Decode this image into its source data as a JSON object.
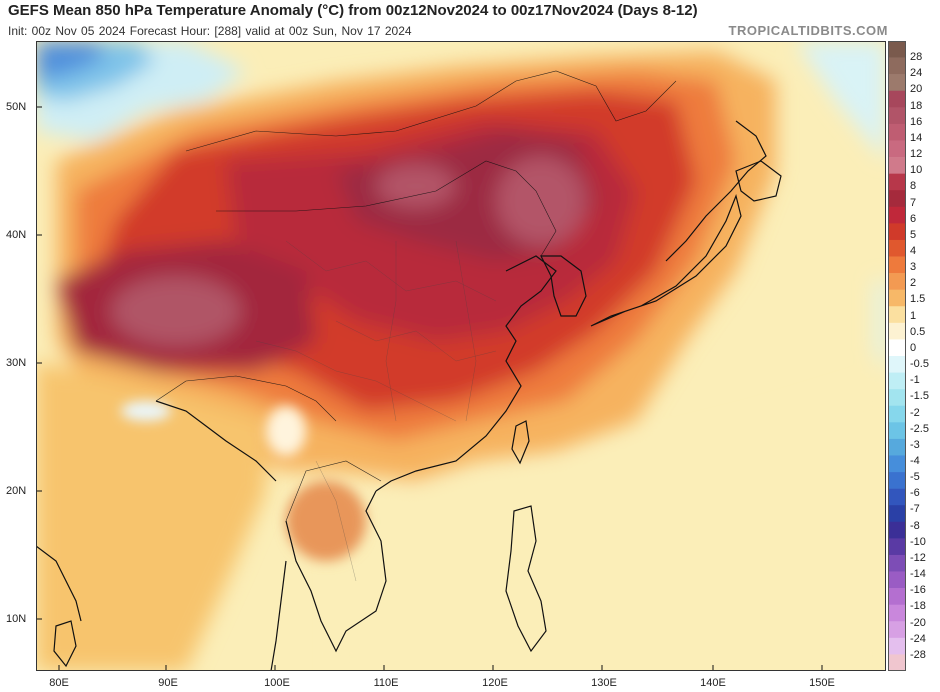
{
  "header": {
    "title": "GEFS Mean 850 hPa Temperature Anomaly (°C) from 00z12Nov2024 to 00z17Nov2024 (Days 8-12)",
    "subtitle": "Init: 00z Nov 05 2024   Forecast Hour: [288]   valid at 00z Sun, Nov 17 2024",
    "brand": "TROPICALTIDBITS.COM"
  },
  "map": {
    "lat_labels": [
      "50N",
      "40N",
      "30N",
      "20N",
      "10N"
    ],
    "lon_labels": [
      "80E",
      "90E",
      "100E",
      "110E",
      "120E",
      "130E",
      "140E",
      "150E"
    ],
    "land_color": "#f3e0a6",
    "ocean_color": "#fbeeb8"
  },
  "colorbar": {
    "labels": [
      "28",
      "24",
      "20",
      "18",
      "16",
      "14",
      "12",
      "10",
      "8",
      "7",
      "6",
      "5",
      "4",
      "3",
      "2",
      "1.5",
      "1",
      "0.5",
      "0",
      "-0.5",
      "-1",
      "-1.5",
      "-2",
      "-2.5",
      "-3",
      "-4",
      "-5",
      "-6",
      "-7",
      "-8",
      "-10",
      "-12",
      "-14",
      "-16",
      "-18",
      "-20",
      "-24",
      "-28"
    ],
    "colors": [
      "#7a5a4d",
      "#8e6b5e",
      "#9c7a6c",
      "#a7475c",
      "#b15468",
      "#bf5d72",
      "#c96a80",
      "#d07a8b",
      "#b7374a",
      "#a52a3c",
      "#c0283a",
      "#d03a2a",
      "#e0582e",
      "#ee7a3c",
      "#f39a52",
      "#f7b868",
      "#fbe0a0",
      "#fdf2d2",
      "#ffffff",
      "#dff6fa",
      "#bfeef5",
      "#a2e4ef",
      "#86d7ec",
      "#6cc4e6",
      "#56a9dd",
      "#468edb",
      "#3a72cf",
      "#3256bd",
      "#2a40a6",
      "#3b2f97",
      "#5a3aa4",
      "#7d4db6",
      "#9a5cc4",
      "#b46fd0",
      "#c987dc",
      "#d7a0e4",
      "#e4bfee",
      "#f0c6cf"
    ]
  }
}
